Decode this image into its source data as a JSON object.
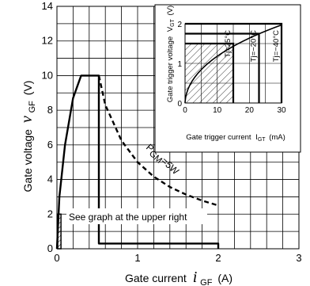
{
  "chart_data": [
    {
      "type": "line",
      "xlabel": "Gate current",
      "xlabel_symbol": "i",
      "xlabel_sub": "GF",
      "xlabel_unit": "(A)",
      "ylabel": "Gate voltage",
      "ylabel_symbol": "v",
      "ylabel_sub": "GF",
      "ylabel_unit": "(V)",
      "xlim": [
        0,
        3
      ],
      "ylim": [
        0,
        14
      ],
      "x_ticks": [
        "0",
        "1",
        "2",
        "3"
      ],
      "y_ticks": [
        "0",
        "2",
        "4",
        "6",
        "8",
        "10",
        "12",
        "14"
      ],
      "grid": true,
      "series": [
        {
          "name": "",
          "style": "solid",
          "x": [
            0.0,
            0.03,
            0.1,
            0.2,
            0.3,
            0.52,
            0.52,
            2.0,
            2.0
          ],
          "y": [
            0.0,
            3.0,
            6.0,
            8.7,
            10.0,
            10.0,
            0.3,
            0.3,
            0.0
          ]
        },
        {
          "name": "P_GM=5W",
          "style": "dashed",
          "x": [
            0.52,
            0.6,
            0.8,
            1.0,
            1.2,
            1.4,
            1.6,
            1.8,
            2.0
          ],
          "y": [
            10.0,
            8.3,
            6.25,
            5.0,
            4.17,
            3.57,
            3.13,
            2.78,
            2.5
          ]
        }
      ],
      "annotations": [
        {
          "text": "P",
          "sub": "GM",
          "suffix": "=5W"
        },
        {
          "text": "See graph at the upper right"
        }
      ]
    },
    {
      "type": "line",
      "xlabel": "Gate trigger current",
      "xlabel_sym": "I",
      "xlabel_sub": "GT",
      "xlabel_unit": "(mA)",
      "ylabel": "Gate trigger voltage",
      "ylabel_sym": "V",
      "ylabel_sub": "GT",
      "ylabel_unit": "(V)",
      "xlim": [
        0,
        30
      ],
      "ylim": [
        0,
        2
      ],
      "x_ticks": [
        "0",
        "10",
        "20",
        "30"
      ],
      "y_ticks": [
        "0",
        "1",
        "2"
      ],
      "grid": true,
      "series": [
        {
          "name": "Tj=25°C",
          "x": [
            0,
            15,
            15
          ],
          "y": [
            1.5,
            1.5,
            0
          ]
        },
        {
          "name": "Tj=−20°C",
          "x": [
            0,
            23,
            23
          ],
          "y": [
            1.75,
            1.75,
            0
          ]
        },
        {
          "name": "Tj=−40°C",
          "x": [
            0,
            30,
            30
          ],
          "y": [
            2,
            2,
            0
          ]
        }
      ]
    }
  ]
}
